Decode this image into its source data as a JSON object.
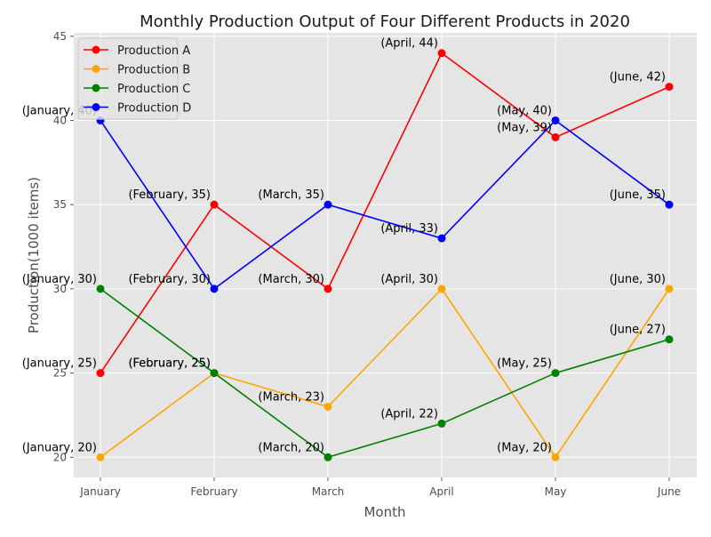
{
  "chart_data": {
    "type": "line",
    "title": "Monthly Production Output of Four Different Products in 2020",
    "xlabel": "Month",
    "ylabel": "Production(1000 items)",
    "categories": [
      "January",
      "February",
      "March",
      "April",
      "May",
      "June"
    ],
    "ylim": [
      18.8,
      45.2
    ],
    "yticks": [
      20,
      25,
      30,
      35,
      40,
      45
    ],
    "grid": true,
    "legend_position": "top-left",
    "series": [
      {
        "name": "Production A",
        "color": "#ff0000",
        "values": [
          25,
          35,
          30,
          44,
          39,
          42
        ],
        "labels": [
          "(January, 25)",
          "(February, 35)",
          "(March, 30)",
          "(April, 44)",
          "(May, 39)",
          "(June, 42)"
        ]
      },
      {
        "name": "Production B",
        "color": "#ffa500",
        "values": [
          20,
          25,
          23,
          30,
          20,
          30
        ],
        "labels": [
          "(January, 20)",
          "(February, 25)",
          "(March, 23)",
          "(April, 30)",
          "(May, 20)",
          "(June, 30)"
        ]
      },
      {
        "name": "Production C",
        "color": "#008000",
        "values": [
          30,
          25,
          20,
          22,
          25,
          27
        ],
        "labels": [
          "(January, 30)",
          "(February, 25)",
          "(March, 20)",
          "(April, 22)",
          "(May, 25)",
          "(June, 27)"
        ]
      },
      {
        "name": "Production D",
        "color": "#0000ff",
        "values": [
          40,
          30,
          35,
          33,
          40,
          35
        ],
        "labels": [
          "(January, 40)",
          "(February, 30)",
          "(March, 35)",
          "(April, 33)",
          "(May, 40)",
          "(June, 35)"
        ]
      }
    ]
  }
}
